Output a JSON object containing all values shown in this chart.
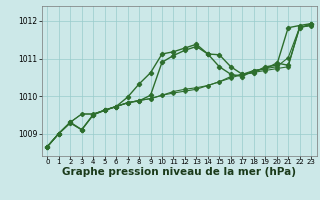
{
  "background_color": "#cce8e8",
  "grid_color": "#99cccc",
  "line_color": "#2d6e2d",
  "xlabel": "Graphe pression niveau de la mer (hPa)",
  "xlabel_fontsize": 7.5,
  "ylabel_ticks": [
    1009,
    1010,
    1011,
    1012
  ],
  "xlim": [
    -0.5,
    23.5
  ],
  "ylim": [
    1008.4,
    1012.4
  ],
  "xticks": [
    0,
    1,
    2,
    3,
    4,
    5,
    6,
    7,
    8,
    9,
    10,
    11,
    12,
    13,
    14,
    15,
    16,
    17,
    18,
    19,
    20,
    21,
    22,
    23
  ],
  "series": [
    {
      "x": [
        0,
        1,
        2,
        3,
        4,
        5,
        6,
        7,
        8,
        9,
        10,
        11,
        12,
        13,
        14,
        15,
        16,
        17,
        18,
        19,
        20,
        21,
        22,
        23
      ],
      "y": [
        1008.65,
        1009.0,
        1009.3,
        1009.1,
        1009.5,
        1009.62,
        1009.72,
        1009.82,
        1009.87,
        1010.02,
        1010.9,
        1011.08,
        1011.22,
        1011.32,
        1011.12,
        1011.1,
        1010.78,
        1010.58,
        1010.62,
        1010.78,
        1010.82,
        1011.82,
        1011.88,
        1011.93
      ],
      "marker": "P",
      "linewidth": 1.0,
      "markersize": 3.0
    },
    {
      "x": [
        0,
        1,
        2,
        3,
        4,
        5,
        6,
        7,
        8,
        9,
        10,
        11,
        12,
        13,
        14,
        15,
        16,
        17,
        18,
        19,
        20,
        21,
        22,
        23
      ],
      "y": [
        1008.65,
        1009.0,
        1009.3,
        1009.52,
        1009.52,
        1009.62,
        1009.72,
        1009.82,
        1009.88,
        1009.93,
        1010.02,
        1010.08,
        1010.13,
        1010.18,
        1010.28,
        1010.38,
        1010.48,
        1010.58,
        1010.63,
        1010.68,
        1010.73,
        1010.78,
        1011.83,
        1011.88
      ],
      "marker": "P",
      "linewidth": 0.8,
      "markersize": 2.5
    },
    {
      "x": [
        0,
        1,
        2,
        3,
        4,
        5,
        6,
        7,
        8,
        9,
        10,
        11,
        12,
        13,
        14,
        15,
        16,
        17,
        18,
        19,
        20,
        21,
        22,
        23
      ],
      "y": [
        1008.65,
        1009.0,
        1009.3,
        1009.52,
        1009.52,
        1009.62,
        1009.72,
        1009.82,
        1009.88,
        1009.93,
        1010.02,
        1010.12,
        1010.18,
        1010.22,
        1010.28,
        1010.38,
        1010.52,
        1010.58,
        1010.68,
        1010.73,
        1010.78,
        1011.02,
        1011.83,
        1011.88
      ],
      "marker": "P",
      "linewidth": 0.8,
      "markersize": 2.5
    },
    {
      "x": [
        0,
        1,
        2,
        3,
        4,
        5,
        6,
        7,
        8,
        9,
        10,
        11,
        12,
        13,
        14,
        15,
        16,
        17,
        18,
        19,
        20,
        21,
        22,
        23
      ],
      "y": [
        1008.65,
        1009.0,
        1009.28,
        1009.1,
        1009.5,
        1009.62,
        1009.72,
        1009.97,
        1010.32,
        1010.62,
        1011.12,
        1011.18,
        1011.28,
        1011.38,
        1011.12,
        1010.78,
        1010.58,
        1010.52,
        1010.68,
        1010.72,
        1010.88,
        1010.82,
        1011.82,
        1011.92
      ],
      "marker": "P",
      "linewidth": 1.0,
      "markersize": 3.0
    }
  ]
}
